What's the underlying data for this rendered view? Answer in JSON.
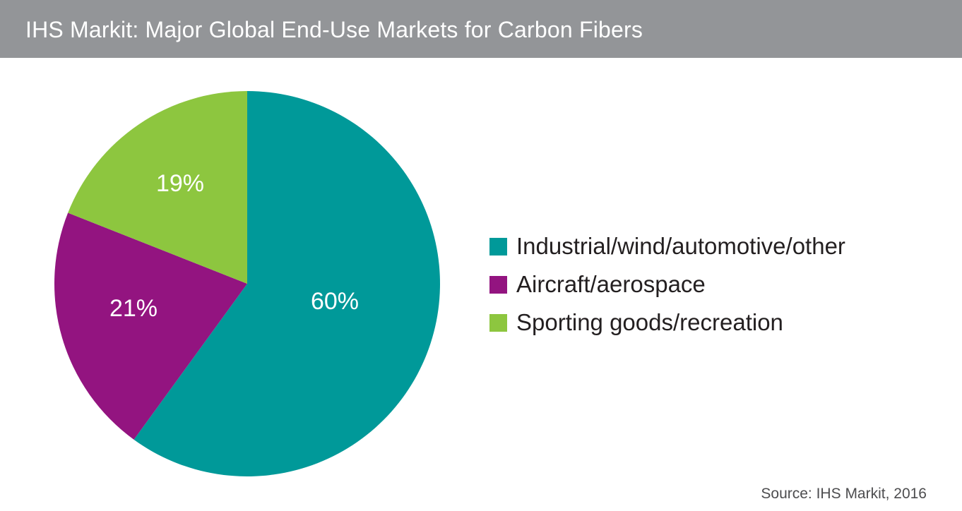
{
  "header": {
    "title": "IHS Markit: Major Global End-Use Markets for Carbon Fibers"
  },
  "chart_data": {
    "type": "pie",
    "title": "IHS Markit: Major Global End-Use Markets for Carbon Fibers",
    "slices": [
      {
        "name": "Industrial/wind/automotive/other",
        "value": 60,
        "label": "60%",
        "color": "#009999"
      },
      {
        "name": "Aircraft/aerospace",
        "value": 21,
        "label": "21%",
        "color": "#931480"
      },
      {
        "name": "Sporting goods/recreation",
        "value": 19,
        "label": "19%",
        "color": "#8dc63f"
      }
    ],
    "start": "12 o'clock",
    "direction": "clockwise",
    "legend_position": "right"
  },
  "footer": {
    "source": "Source:  IHS Markit, 2016"
  }
}
